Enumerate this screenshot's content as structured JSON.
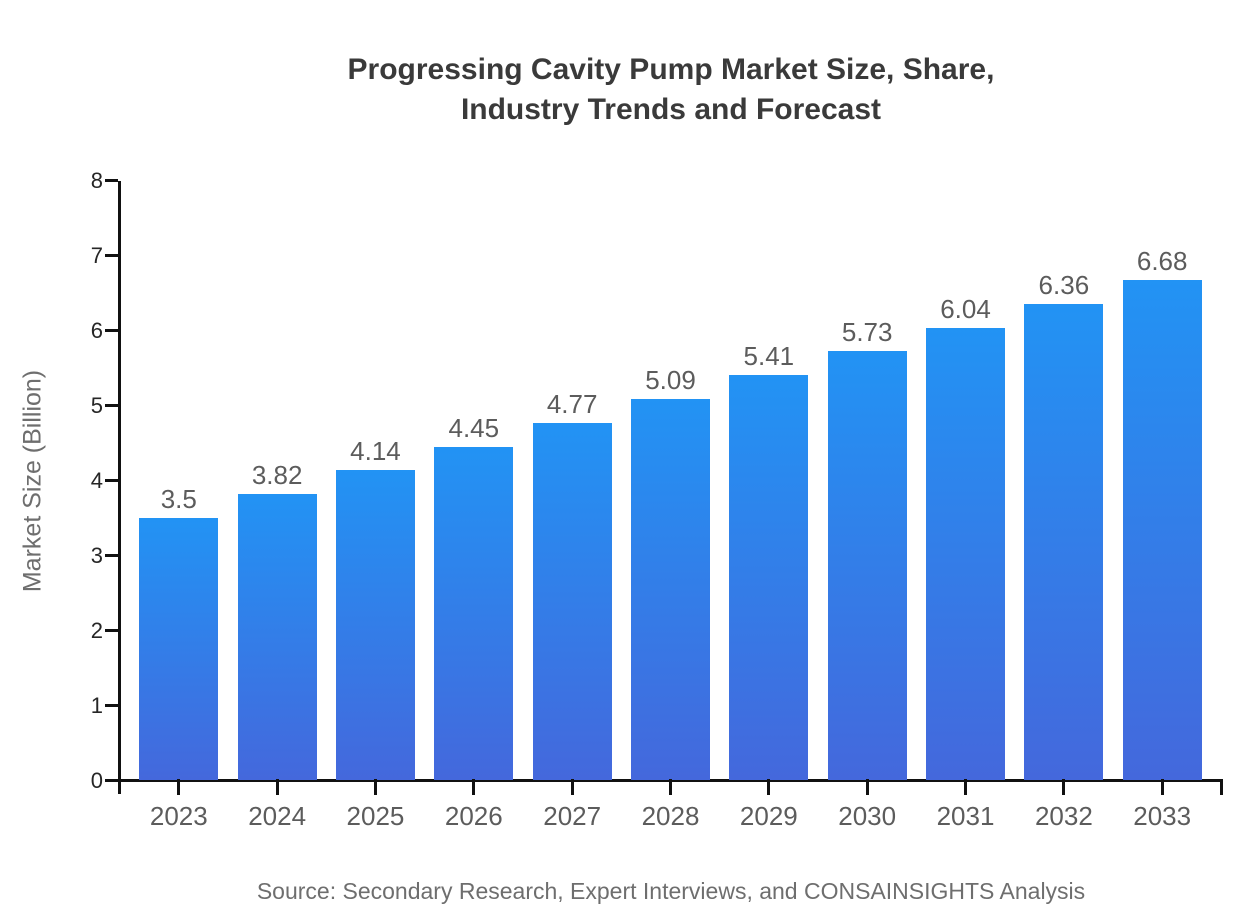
{
  "title": {
    "line1": "Progressing Cavity Pump Market Size, Share,",
    "line2": "Industry Trends and Forecast"
  },
  "source_note": "Source: Secondary Research, Expert Interviews, and CONSAINSIGHTS Analysis",
  "chart_data": {
    "type": "bar",
    "title": "Progressing Cavity Pump Market Size, Share, Industry Trends and Forecast",
    "categories": [
      "2023",
      "2024",
      "2025",
      "2026",
      "2027",
      "2028",
      "2029",
      "2030",
      "2031",
      "2032",
      "2033"
    ],
    "values": [
      3.5,
      3.82,
      4.14,
      4.45,
      4.77,
      5.09,
      5.41,
      5.73,
      6.04,
      6.36,
      6.68
    ],
    "value_labels": [
      "3.5",
      "3.82",
      "4.14",
      "4.45",
      "4.77",
      "5.09",
      "5.41",
      "5.73",
      "6.04",
      "6.36",
      "6.68"
    ],
    "xlabel": "",
    "ylabel": "Market Size (Billion)",
    "ylim": [
      0,
      8
    ],
    "yticks": [
      0,
      1,
      2,
      3,
      4,
      5,
      6,
      7,
      8
    ],
    "grid": false,
    "legend": false,
    "bar_gradient": {
      "top": "#2293f4",
      "bottom": "#4468dc"
    },
    "axis_color": "#111111"
  }
}
